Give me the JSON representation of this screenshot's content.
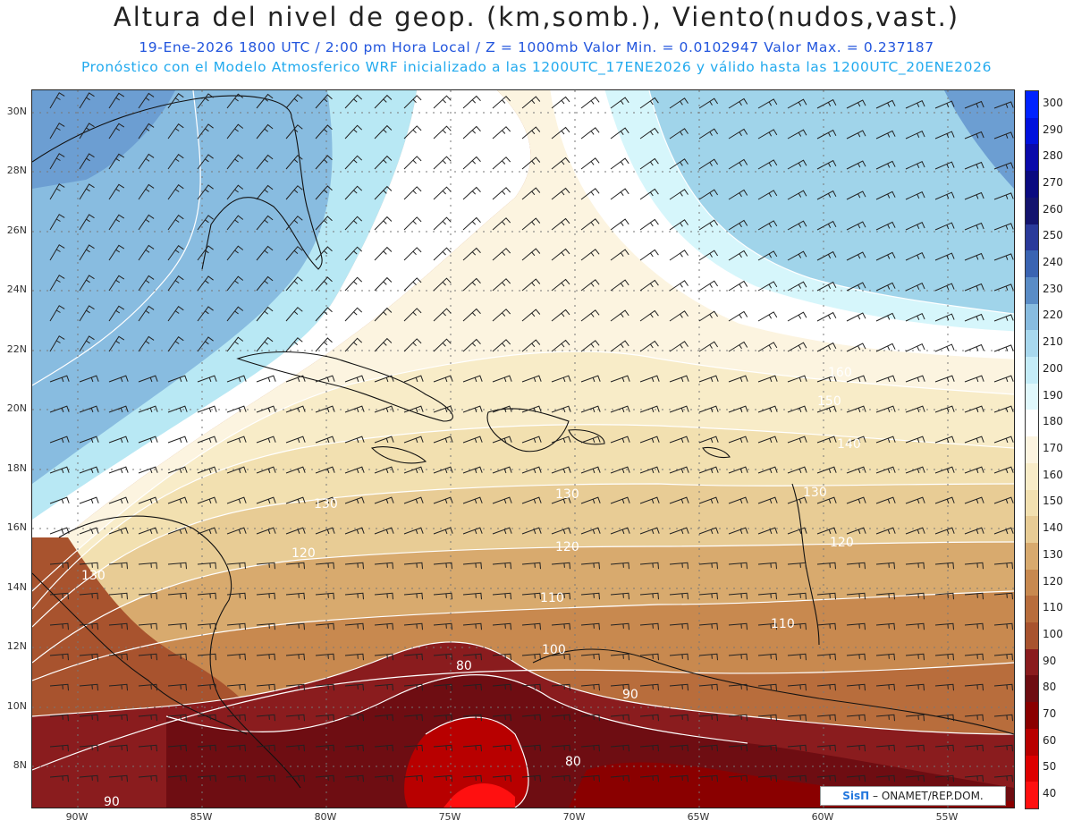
{
  "header": {
    "title": "Altura del nivel de geop. (km,somb.), Viento(nudos,vast.)",
    "subtitle1": "19-Ene-2026  1800 UTC / 2:00 pm Hora Local / Z = 1000mb  Valor Min. = 0.0102947  Valor Max. = 0.237187",
    "subtitle2": "Pronóstico con el Modelo Atmosferico WRF inicializado a las 1200UTC_17ENE2026 y válido hasta las  1200UTC_20ENE2026"
  },
  "map": {
    "lat_labels": [
      "30N",
      "28N",
      "26N",
      "24N",
      "22N",
      "20N",
      "18N",
      "16N",
      "14N",
      "12N",
      "10N",
      "8N"
    ],
    "lon_labels": [
      "90W",
      "85W",
      "80W",
      "75W",
      "70W",
      "65W",
      "60W",
      "55W"
    ],
    "contour_labels": [
      "150",
      "160",
      "140",
      "130",
      "130",
      "130",
      "130",
      "120",
      "120",
      "120",
      "110",
      "110",
      "100",
      "90",
      "80",
      "80",
      "90"
    ],
    "zones_bottom_to_top": [
      {
        "level": "70-80",
        "color": "#6e0d12"
      },
      {
        "level": "80-90",
        "color": "#8a1c1e"
      },
      {
        "level": "90-100",
        "color": "#a8532e"
      },
      {
        "level": "100-110",
        "color": "#b86d3c"
      },
      {
        "level": "110-120",
        "color": "#c8894f"
      },
      {
        "level": "120-130",
        "color": "#d8aa6e"
      },
      {
        "level": "130-140",
        "color": "#e8cc95"
      },
      {
        "level": "140-150",
        "color": "#f2e0b0"
      },
      {
        "level": "150-160",
        "color": "#f8ecc8"
      },
      {
        "level": "160-170",
        "color": "#fcf4e0"
      },
      {
        "level": "170-180",
        "color": "#ffffff"
      },
      {
        "level": "180-190",
        "color": "#d6f6fb"
      },
      {
        "level": "190-200",
        "color": "#b8e8f4"
      },
      {
        "level": "200-210",
        "color": "#a0d4ea"
      },
      {
        "level": "210-220",
        "color": "#88bce0"
      },
      {
        "level": "220-230",
        "color": "#6c9ed2"
      }
    ]
  },
  "colorbar": {
    "labels": [
      "300",
      "290",
      "280",
      "270",
      "260",
      "250",
      "240",
      "230",
      "220",
      "210",
      "200",
      "190",
      "180",
      "170",
      "160",
      "150",
      "140",
      "130",
      "120",
      "110",
      "100",
      "90",
      "80",
      "70",
      "60",
      "50",
      "40"
    ],
    "colors": [
      "#0022ff",
      "#0011dd",
      "#0a0aaa",
      "#0b0b80",
      "#14146e",
      "#2a3a9a",
      "#3a64b2",
      "#5a8cc6",
      "#88bce0",
      "#a8d8ee",
      "#c4ecf8",
      "#e0f8fc",
      "#ffffff",
      "#fcf4e0",
      "#f8ecc8",
      "#f2e0b0",
      "#e8cc95",
      "#d8aa6e",
      "#c8894f",
      "#b86d3c",
      "#a8532e",
      "#8a1c1e",
      "#6e0d12",
      "#8a0000",
      "#b80000",
      "#dd0000",
      "#ff1010"
    ]
  },
  "credit": {
    "brand": "SisΠ",
    "text": "– ONAMET/REP.DOM."
  }
}
